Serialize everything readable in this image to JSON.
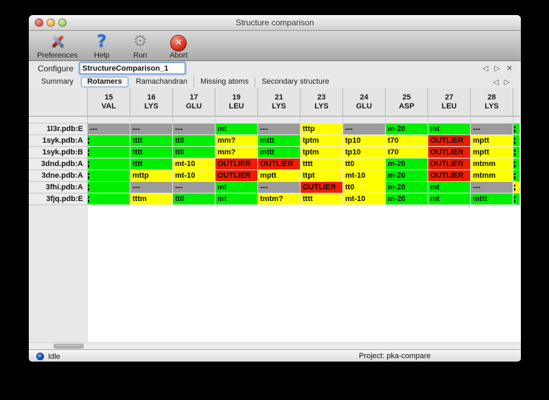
{
  "window": {
    "title": "Structure comparison"
  },
  "traffic_lights": [
    "close",
    "minimize",
    "zoom"
  ],
  "toolbar": {
    "items": [
      {
        "label": "Preferences",
        "icon": "tools-icon"
      },
      {
        "label": "Help",
        "icon": "help-icon"
      },
      {
        "label": "Run",
        "icon": "gear-icon"
      },
      {
        "label": "Abort",
        "icon": "abort-icon"
      }
    ]
  },
  "configure": {
    "label": "Configure",
    "value": "StructureComparison_1",
    "nav_icons": [
      "prev-icon",
      "next-icon",
      "close-icon"
    ]
  },
  "tabs": {
    "items": [
      {
        "label": "Summary",
        "selected": false
      },
      {
        "label": "Rotamers",
        "selected": true
      },
      {
        "label": "Ramachandran",
        "selected": false
      },
      {
        "label": "Missing atoms",
        "selected": false
      },
      {
        "label": "Secondary structure",
        "selected": false
      }
    ],
    "nav_icons": [
      "prev-icon",
      "next-icon"
    ]
  },
  "table": {
    "columns": [
      {
        "num": "15",
        "res": "VAL"
      },
      {
        "num": "16",
        "res": "LYS"
      },
      {
        "num": "17",
        "res": "GLU"
      },
      {
        "num": "19",
        "res": "LEU"
      },
      {
        "num": "21",
        "res": "LYS"
      },
      {
        "num": "23",
        "res": "LYS"
      },
      {
        "num": "24",
        "res": "GLU"
      },
      {
        "num": "25",
        "res": "ASP"
      },
      {
        "num": "27",
        "res": "LEU"
      },
      {
        "num": "28",
        "res": "LYS"
      }
    ],
    "rows": [
      {
        "name": "1l3r.pdb:E",
        "cells": [
          {
            "t": "---",
            "c": "gray"
          },
          {
            "t": "---",
            "c": "gray"
          },
          {
            "t": "---",
            "c": "gray"
          },
          {
            "t": "mt",
            "c": "green"
          },
          {
            "t": "---",
            "c": "gray"
          },
          {
            "t": "tttp",
            "c": "yellow"
          },
          {
            "t": "---",
            "c": "gray"
          },
          {
            "t": "m-20",
            "c": "green"
          },
          {
            "t": "mt",
            "c": "green"
          },
          {
            "t": "---",
            "c": "gray"
          }
        ],
        "overflow": {
          "c": "green",
          "clipped": true
        }
      },
      {
        "name": "1syk.pdb:A",
        "cells": [
          {
            "t": "",
            "c": "green",
            "clipped": true
          },
          {
            "t": "tttt",
            "c": "green"
          },
          {
            "t": "tt0",
            "c": "green"
          },
          {
            "t": "mm?",
            "c": "yellow"
          },
          {
            "t": "mttt",
            "c": "green"
          },
          {
            "t": "tptm",
            "c": "yellow"
          },
          {
            "t": "tp10",
            "c": "yellow"
          },
          {
            "t": "t70",
            "c": "yellow"
          },
          {
            "t": "OUTLIER",
            "c": "red"
          },
          {
            "t": "mptt",
            "c": "yellow"
          }
        ],
        "overflow": {
          "c": "green",
          "clipped": true
        }
      },
      {
        "name": "1syk.pdb:B",
        "cells": [
          {
            "t": "",
            "c": "green",
            "clipped": true
          },
          {
            "t": "tttt",
            "c": "green"
          },
          {
            "t": "tt0",
            "c": "green"
          },
          {
            "t": "mm?",
            "c": "yellow"
          },
          {
            "t": "mttt",
            "c": "green"
          },
          {
            "t": "tptm",
            "c": "yellow"
          },
          {
            "t": "tp10",
            "c": "yellow"
          },
          {
            "t": "t70",
            "c": "yellow"
          },
          {
            "t": "OUTLIER",
            "c": "red"
          },
          {
            "t": "mptt",
            "c": "yellow"
          }
        ],
        "overflow": {
          "c": "green",
          "clipped": true
        }
      },
      {
        "name": "3dnd.pdb:A",
        "cells": [
          {
            "t": "",
            "c": "green",
            "clipped": true
          },
          {
            "t": "tttt",
            "c": "green"
          },
          {
            "t": "mt-10",
            "c": "yellow"
          },
          {
            "t": "OUTLIER",
            "c": "red"
          },
          {
            "t": "OUTLIER",
            "c": "red"
          },
          {
            "t": "tttt",
            "c": "yellow"
          },
          {
            "t": "tt0",
            "c": "yellow"
          },
          {
            "t": "m-20",
            "c": "green"
          },
          {
            "t": "OUTLIER",
            "c": "red"
          },
          {
            "t": "mtmm",
            "c": "yellow"
          }
        ],
        "overflow": {
          "c": "green",
          "clipped": true
        }
      },
      {
        "name": "3dne.pdb:A",
        "cells": [
          {
            "t": "",
            "c": "green",
            "clipped": true
          },
          {
            "t": "mttp",
            "c": "yellow"
          },
          {
            "t": "mt-10",
            "c": "yellow"
          },
          {
            "t": "OUTLIER",
            "c": "red"
          },
          {
            "t": "mptt",
            "c": "yellow"
          },
          {
            "t": "ttpt",
            "c": "yellow"
          },
          {
            "t": "mt-10",
            "c": "yellow"
          },
          {
            "t": "m-20",
            "c": "green"
          },
          {
            "t": "OUTLIER",
            "c": "red"
          },
          {
            "t": "mtmm",
            "c": "yellow"
          }
        ],
        "overflow": {
          "c": "green",
          "clipped": true
        }
      },
      {
        "name": "3fhi.pdb:A",
        "cells": [
          {
            "t": "",
            "c": "green",
            "clipped": true
          },
          {
            "t": "---",
            "c": "gray"
          },
          {
            "t": "---",
            "c": "gray"
          },
          {
            "t": "mt",
            "c": "green"
          },
          {
            "t": "---",
            "c": "gray"
          },
          {
            "t": "OUTLIER",
            "c": "red"
          },
          {
            "t": "tt0",
            "c": "yellow"
          },
          {
            "t": "m-20",
            "c": "green"
          },
          {
            "t": "mt",
            "c": "green"
          },
          {
            "t": "---",
            "c": "gray"
          }
        ],
        "overflow": {
          "c": "yellow",
          "clipped": true
        }
      },
      {
        "name": "3fjq.pdb:E",
        "cells": [
          {
            "t": "",
            "c": "green",
            "clipped": true
          },
          {
            "t": "tttm",
            "c": "yellow"
          },
          {
            "t": "tt0",
            "c": "green"
          },
          {
            "t": "mt",
            "c": "green"
          },
          {
            "t": "tmtm?",
            "c": "yellow"
          },
          {
            "t": "tttt",
            "c": "yellow"
          },
          {
            "t": "mt-10",
            "c": "yellow"
          },
          {
            "t": "m-20",
            "c": "green"
          },
          {
            "t": "mt",
            "c": "green"
          },
          {
            "t": "mttt",
            "c": "green"
          }
        ],
        "overflow": {
          "c": "green",
          "clipped": true
        }
      }
    ]
  },
  "status": {
    "state": "Idle",
    "project": "Project: pka-compare"
  },
  "colors": {
    "cell_green": "#00ef00",
    "cell_yellow": "#ffff00",
    "cell_red": "#f21c00",
    "cell_gray": "#9b9b9b",
    "focus_ring_blue": "#6ea0f0",
    "idle_dot_blue": "#1d50cf"
  }
}
